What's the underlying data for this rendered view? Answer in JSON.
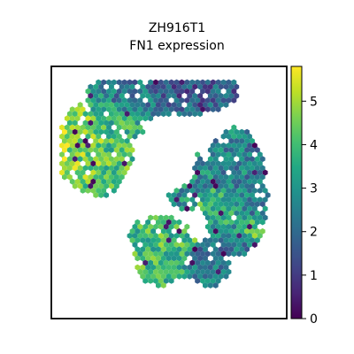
{
  "chart_data": {
    "type": "heatmap",
    "subtype": "spatial-hexbin",
    "title": "ZH916T1",
    "subtitle": "FN1 expression",
    "xlabel": "",
    "ylabel": "",
    "axis_ticks_shown": false,
    "grid": false,
    "colormap": "viridis",
    "colorbar": {
      "placement": "right",
      "range": [
        0,
        5.8
      ],
      "ticks": [
        0,
        1,
        2,
        3,
        4,
        5
      ],
      "tick_labels": [
        "0",
        "1",
        "2",
        "3",
        "4",
        "5"
      ]
    },
    "tissue_regions": [
      {
        "region": "upper band (top edge, right half)",
        "cx": 0.5,
        "cy": 0.9,
        "rx": 0.3,
        "ry": 0.1,
        "mean_expression": 1.7
      },
      {
        "region": "upper band (top-left)",
        "cx": 0.32,
        "cy": 0.87,
        "rx": 0.18,
        "ry": 0.1,
        "mean_expression": 3.0
      },
      {
        "region": "left lobe hotspot",
        "cx": 0.12,
        "cy": 0.68,
        "rx": 0.1,
        "ry": 0.16,
        "mean_expression": 5.1
      },
      {
        "region": "left lobe",
        "cx": 0.2,
        "cy": 0.68,
        "rx": 0.15,
        "ry": 0.2,
        "mean_expression": 4.1
      },
      {
        "region": "upper-left interior",
        "cx": 0.28,
        "cy": 0.77,
        "rx": 0.12,
        "ry": 0.08,
        "mean_expression": 3.6
      },
      {
        "region": "right lobe",
        "cx": 0.78,
        "cy": 0.5,
        "rx": 0.14,
        "ry": 0.26,
        "mean_expression": 2.6
      },
      {
        "region": "right lobe diagonal streak",
        "cx": 0.72,
        "cy": 0.45,
        "rx": 0.09,
        "ry": 0.08,
        "mean_expression": 4.8
      },
      {
        "region": "right lobe lower streak",
        "cx": 0.84,
        "cy": 0.35,
        "rx": 0.06,
        "ry": 0.05,
        "mean_expression": 4.6
      },
      {
        "region": "middle-right tissue",
        "cx": 0.58,
        "cy": 0.55,
        "rx": 0.1,
        "ry": 0.12,
        "mean_expression": 2.9
      },
      {
        "region": "bottom-center lobe",
        "cx": 0.46,
        "cy": 0.27,
        "rx": 0.16,
        "ry": 0.14,
        "mean_expression": 3.9
      },
      {
        "region": "bottom-right lobe",
        "cx": 0.66,
        "cy": 0.22,
        "rx": 0.1,
        "ry": 0.1,
        "mean_expression": 2.4
      }
    ],
    "empty_regions": [
      {
        "region": "central gap",
        "cx": 0.48,
        "cy": 0.63,
        "rx": 0.13,
        "ry": 0.13
      },
      {
        "region": "lower-left background",
        "cx": 0.12,
        "cy": 0.15,
        "rx": 0.25,
        "ry": 0.3
      },
      {
        "region": "upper-right corner",
        "cx": 0.95,
        "cy": 0.95,
        "rx": 0.12,
        "ry": 0.2
      },
      {
        "region": "lower-right corner",
        "cx": 0.97,
        "cy": 0.08,
        "rx": 0.12,
        "ry": 0.15
      }
    ]
  }
}
